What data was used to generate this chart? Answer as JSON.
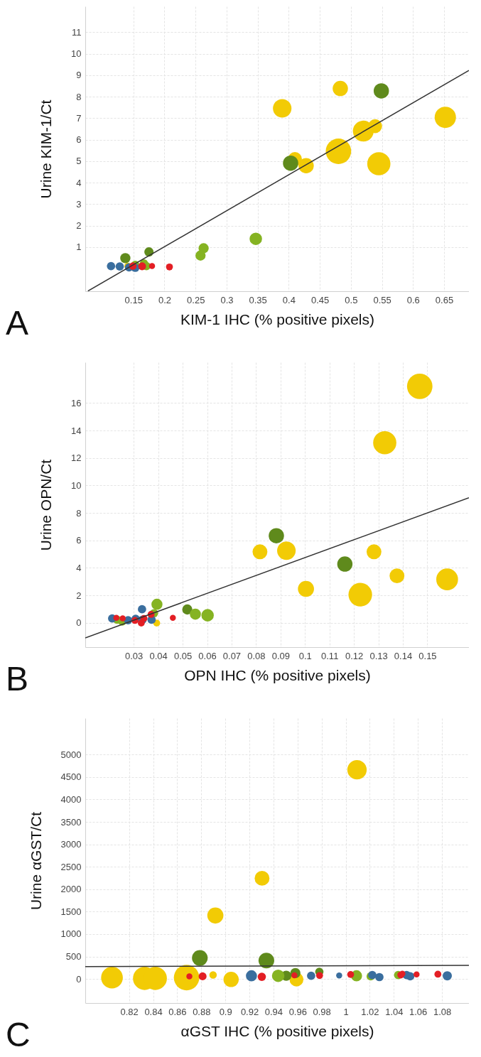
{
  "chart_data": [
    {
      "type": "bubble",
      "xlabel": "KIM-1 IHC (% positive pixels)",
      "ylabel": "Urine KIM-1/Ct",
      "xlim": [
        0.0725,
        0.69
      ],
      "ylim": [
        -1.05,
        12.2
      ],
      "xticks": [
        0.15,
        0.2,
        0.25,
        0.3,
        0.35,
        0.4,
        0.45,
        0.5,
        0.55,
        0.6,
        0.65
      ],
      "yticks": [
        1,
        2,
        3,
        4,
        5,
        6,
        7,
        8,
        9,
        10,
        11
      ],
      "grid": true,
      "annotations": [
        "A"
      ],
      "series": [
        {
          "color": "#f2cb05",
          "x": [
            0.3895,
            0.483,
            0.652,
            0.52,
            0.539,
            0.48,
            0.545,
            0.41,
            0.428,
            0.141
          ],
          "values": [
            7.46,
            8.38,
            7.04,
            6.4,
            6.63,
            5.46,
            4.88,
            5.1,
            4.79,
            0.12
          ],
          "sizes": [
            0.53,
            0.36,
            0.7,
            0.67,
            0.3,
            1,
            0.83,
            0.3,
            0.36,
            0.074
          ]
        },
        {
          "color": "#5f8a1c",
          "x": [
            0.549,
            0.403,
            0.175,
            0.137
          ],
          "values": [
            8.27,
            4.91,
            0.78,
            0.49
          ],
          "sizes": [
            0.36,
            0.36,
            0.132,
            0.16
          ]
        },
        {
          "color": "#85b322",
          "x": [
            0.347,
            0.263,
            0.258,
            0.153,
            0.167,
            0.171
          ],
          "values": [
            1.39,
            0.95,
            0.61,
            0.18,
            0.24,
            0.12
          ],
          "sizes": [
            0.24,
            0.16,
            0.16,
            0.107,
            0.107,
            0.107
          ]
        },
        {
          "color": "#3a6e9e",
          "x": [
            0.114,
            0.128,
            0.143,
            0.153
          ],
          "values": [
            0.12,
            0.1,
            0.06,
            0.04
          ],
          "sizes": [
            0.107,
            0.107,
            0.107,
            0.107
          ]
        },
        {
          "color": "#e31e24",
          "x": [
            0.208,
            0.18,
            0.164,
            0.149
          ],
          "values": [
            0.08,
            0.12,
            0.11,
            0.12
          ],
          "sizes": [
            0.074,
            0.056,
            0.096,
            0.085
          ]
        },
        {
          "type": "line",
          "color": "#333333",
          "x": [
            0.0768,
            0.69
          ],
          "values": [
            -1.04,
            9.22
          ]
        }
      ]
    },
    {
      "type": "bubble",
      "xlabel": "OPN IHC (% positive pixels)",
      "ylabel": "Urine OPN/Ct",
      "xlim": [
        0.0102,
        0.167
      ],
      "ylim": [
        -1.77,
        18.97
      ],
      "xticks": [
        0.03,
        0.04,
        0.05,
        0.06,
        0.07,
        0.08,
        0.09,
        0.1,
        0.11,
        0.12,
        0.13,
        0.14,
        0.15
      ],
      "yticks": [
        0,
        2,
        4,
        6,
        8,
        10,
        12,
        14,
        16
      ],
      "grid": true,
      "annotations": [
        "B"
      ],
      "series": [
        {
          "color": "#f2cb05",
          "x": [
            0.1469,
            0.1326,
            0.0816,
            0.0924,
            0.1004,
            0.1226,
            0.1282,
            0.1376,
            0.1581,
            0.0394
          ],
          "values": [
            17.22,
            13.11,
            5.17,
            5.25,
            2.47,
            2.05,
            5.17,
            3.42,
            3.16,
            -0.02
          ],
          "sizes": [
            1,
            0.83,
            0.34,
            0.53,
            0.4,
            0.86,
            0.34,
            0.34,
            0.73,
            0.074
          ]
        },
        {
          "color": "#5f8a1c",
          "x": [
            0.0883,
            0.1163,
            0.0519
          ],
          "values": [
            6.34,
            4.28,
            0.97
          ],
          "sizes": [
            0.36,
            0.36,
            0.16
          ]
        },
        {
          "color": "#85b322",
          "x": [
            0.0395,
            0.0552,
            0.0602,
            0.0232,
            0.0253,
            0.0383
          ],
          "values": [
            1.35,
            0.63,
            0.55,
            0.23,
            0.1,
            0.7
          ],
          "sizes": [
            0.19,
            0.19,
            0.24,
            0.107,
            0.107,
            0.107
          ]
        },
        {
          "color": "#3a6e9e",
          "x": [
            0.0212,
            0.0277,
            0.0308,
            0.0334,
            0.0336,
            0.0373
          ],
          "values": [
            0.32,
            0.19,
            0.29,
            0.99,
            0.23,
            0.23
          ],
          "sizes": [
            0.107,
            0.107,
            0.107,
            0.107,
            0.107,
            0.107
          ]
        },
        {
          "color": "#e31e24",
          "x": [
            0.0229,
            0.0255,
            0.0305,
            0.0331,
            0.0342,
            0.0371,
            0.046
          ],
          "values": [
            0.36,
            0.32,
            0.17,
            -0.02,
            0.32,
            0.61,
            0.36
          ],
          "sizes": [
            0.056,
            0.056,
            0.074,
            0.074,
            0.074,
            0.074,
            0.056
          ]
        },
        {
          "type": "line",
          "color": "#333333",
          "x": [
            0.0102,
            0.167
          ],
          "values": [
            -1.1,
            9.11
          ]
        }
      ]
    },
    {
      "type": "bubble",
      "xlabel": "αGST IHC (% positive pixels)",
      "ylabel": "Urine αGST/Ct",
      "xlim": [
        0.7836,
        1.1024
      ],
      "ylim": [
        -537,
        5812
      ],
      "xticks": [
        0.82,
        0.84,
        0.86,
        0.88,
        0.9,
        0.92,
        0.94,
        0.96,
        0.98,
        1,
        1.02,
        1.04,
        1.06,
        1.08
      ],
      "yticks": [
        0,
        500,
        1000,
        1500,
        2000,
        2500,
        3000,
        3500,
        4000,
        4500,
        5000
      ],
      "grid": true,
      "annotations": [
        "C"
      ],
      "series": [
        {
          "color": "#f2cb05",
          "x": [
            1.0094,
            0.9305,
            0.8917,
            0.8058,
            0.8329,
            0.8418,
            0.8678,
            0.8898,
            0.9048,
            0.9591
          ],
          "values": [
            4661,
            2243,
            1413,
            29,
            12,
            12,
            29,
            88,
            -12,
            -12
          ],
          "sizes": [
            0.58,
            0.34,
            0.4,
            0.73,
            0.83,
            0.83,
            1,
            0.085,
            0.36,
            0.3
          ]
        },
        {
          "color": "#5f8a1c",
          "x": [
            0.8788,
            0.9341,
            0.9506,
            0.9582,
            0.9781
          ],
          "values": [
            467,
            409,
            70,
            129,
            158
          ],
          "sizes": [
            0.38,
            0.38,
            0.16,
            0.16,
            0.107
          ]
        },
        {
          "color": "#85b322",
          "x": [
            0.9439,
            1.009,
            1.0208,
            1.0436
          ],
          "values": [
            70,
            70,
            58,
            88
          ],
          "sizes": [
            0.24,
            0.19,
            0.107,
            0.107
          ]
        },
        {
          "color": "#3a6e9e",
          "x": [
            0.9217,
            0.9713,
            0.9946,
            1.0221,
            1.028,
            1.0506,
            1.0536,
            1.0844
          ],
          "values": [
            70,
            70,
            76,
            88,
            41,
            88,
            58,
            70
          ],
          "sizes": [
            0.19,
            0.107,
            0.056,
            0.107,
            0.107,
            0.107,
            0.107,
            0.132
          ]
        },
        {
          "color": "#e31e24",
          "x": [
            0.8701,
            0.8811,
            0.9303,
            0.9574,
            0.9783,
            1.0041,
            1.0458,
            1.0471,
            1.0589,
            1.0766
          ],
          "values": [
            58,
            58,
            47,
            82,
            76,
            99,
            88,
            117,
            99,
            105
          ],
          "sizes": [
            0.056,
            0.096,
            0.107,
            0.056,
            0.074,
            0.074,
            0.074,
            0.056,
            0.056,
            0.074
          ]
        },
        {
          "type": "line",
          "color": "#333333",
          "x": [
            0.7836,
            1.1024
          ],
          "values": [
            275,
            304
          ]
        }
      ]
    }
  ]
}
